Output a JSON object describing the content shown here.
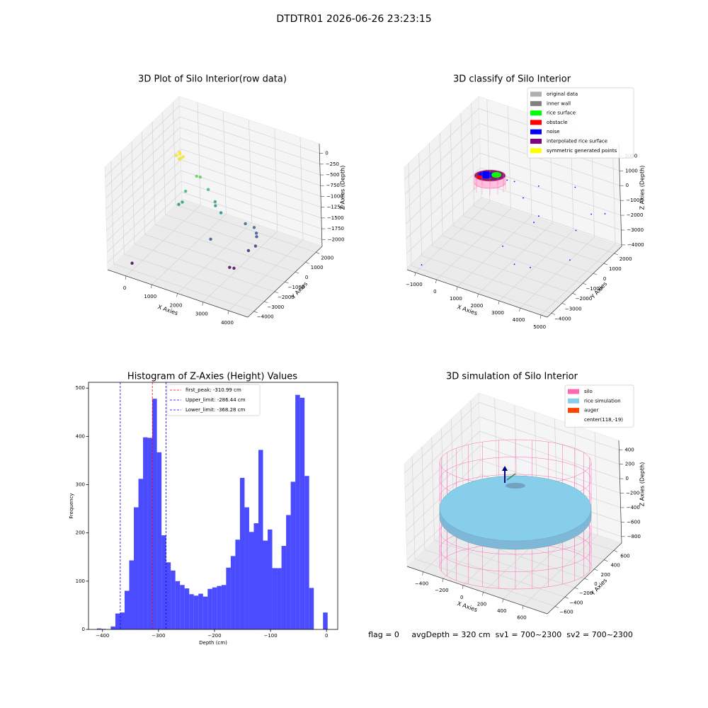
{
  "title": "DTDTR01 2026-06-26 23:23:15",
  "footer": "flag = 0     avgDepth = 320 cm  sv1 = 700~2300  sv2 = 700~2300",
  "chart_data": [
    {
      "type": "scatter3d",
      "title": "3D Plot of Silo Interior(row data)",
      "xlabel": "X Axies",
      "ylabel": "Y Axies",
      "zlabel": "Z Axies (Depth)",
      "xlim": [
        -720,
        4745
      ],
      "ylim": [
        -4600,
        2600
      ],
      "zlim": [
        -2160,
        224
      ],
      "xticks": [
        0,
        1000,
        2000,
        3000,
        4000
      ],
      "yticks": [
        {
          "value": -4000,
          "label": "−4000"
        },
        {
          "value": -3000,
          "label": "−3000"
        },
        {
          "value": -2000,
          "label": "−2000"
        },
        {
          "value": -1000,
          "label": "−1000"
        },
        0,
        1000,
        2000
      ],
      "zticks": [
        {
          "value": -2000,
          "label": "−2000"
        },
        {
          "value": -1750,
          "label": "−1750"
        },
        {
          "value": -1500,
          "label": "−1500"
        },
        {
          "value": -1250,
          "label": "−1250"
        },
        {
          "value": -1000,
          "label": "−1000"
        },
        {
          "value": -750,
          "label": "−750"
        },
        {
          "value": -500,
          "label": "−500"
        },
        {
          "value": -250,
          "label": "−250"
        },
        0
      ],
      "colormap": "viridis",
      "points": {
        "x": [
          650,
          750,
          800,
          900,
          700,
          850,
          1300,
          1400,
          1700,
          2000,
          2050,
          2300,
          1100,
          1000,
          900,
          3000,
          3300,
          3400,
          3450,
          3300,
          3500,
          2200,
          3000,
          3150,
          0
        ],
        "y": [
          -1100,
          -1000,
          -1200,
          -1050,
          -900,
          -1150,
          -800,
          -700,
          -700,
          -800,
          -900,
          -1000,
          -1400,
          -1500,
          -1600,
          -400,
          -300,
          -350,
          -450,
          -900,
          -700,
          -1800,
          -2000,
          -1950,
          -4000
        ],
        "z": [
          -30,
          0,
          -60,
          -20,
          10,
          -40,
          -450,
          -470,
          -700,
          -900,
          -960,
          -1050,
          -700,
          -950,
          -1000,
          -1300,
          -1350,
          -1450,
          -1500,
          -1750,
          -1650,
          -1500,
          -1950,
          -1950,
          -2000
        ]
      }
    },
    {
      "type": "scatter3d",
      "title": "3D classify of Silo Interior",
      "xlabel": "X Axies",
      "ylabel": "Y Axies",
      "zlabel": "Z Axies (Depth)",
      "xlim": [
        -1400,
        5300
      ],
      "ylim": [
        -4400,
        2700
      ],
      "zlim": [
        -4100,
        2830
      ],
      "xticks": [
        {
          "value": -1000,
          "label": "−1000"
        },
        0,
        1000,
        2000,
        3000,
        4000,
        5000
      ],
      "yticks": [
        {
          "value": -4000,
          "label": "−4000"
        },
        {
          "value": -3000,
          "label": "−3000"
        },
        {
          "value": -2000,
          "label": "−2000"
        },
        {
          "value": -1000,
          "label": "−1000"
        },
        0,
        1000,
        2000
      ],
      "zticks": [
        {
          "value": -4000,
          "label": "−4000"
        },
        {
          "value": -3000,
          "label": "−3000"
        },
        {
          "value": -2000,
          "label": "−2000"
        },
        {
          "value": -1000,
          "label": "−1000"
        },
        0,
        1000,
        2000
      ],
      "legend": "upper right",
      "series": [
        {
          "name": "original data",
          "color": "#b0b0b0"
        },
        {
          "name": "inner wall",
          "color": "#808080"
        },
        {
          "name": "rice surface",
          "color": "#00ff00"
        },
        {
          "name": "obstacle",
          "color": "#ff0000"
        },
        {
          "name": "noise",
          "color": "#0000ff",
          "x": [
            -900,
            1500,
            2000,
            2500,
            3000,
            3500,
            4000,
            4500,
            2000,
            2800,
            3200,
            1000,
            1200,
            4800,
            4600
          ],
          "y": [
            -4000,
            1000,
            1500,
            0,
            -500,
            2000,
            1000,
            1500,
            -2000,
            -2500,
            -1800,
            500,
            800,
            2200,
            -800
          ],
          "z": [
            -3800,
            -1500,
            -800,
            -2000,
            -1000,
            -500,
            -2500,
            -1500,
            -2500,
            -3000,
            -3500,
            -200,
            -400,
            -1800,
            -3000
          ]
        },
        {
          "name": "interpolated rice surface",
          "color": "#800080"
        },
        {
          "name": "symmetric generated points",
          "color": "#ffff00"
        }
      ]
    },
    {
      "type": "histogram",
      "title": "Histogram of Z-Axies (Height) Values",
      "xlabel": "Depth (cm)",
      "ylabel": "Frequency",
      "color": "#0000ff",
      "bins": [
        -410,
        -401.76,
        -393.52,
        -385.28,
        -377.04,
        -368.8,
        -360.56,
        -352.32,
        -344.08,
        -335.84,
        -327.6,
        -319.36,
        -311.12,
        -302.88,
        -294.64,
        -286.4,
        -278.16,
        -269.92,
        -261.68,
        -253.44,
        -245.2,
        -236.96,
        -228.72,
        -220.48,
        -212.24,
        -204,
        -195.76,
        -187.52,
        -179.28,
        -171.04,
        -162.8,
        -154.56,
        -146.32,
        -138.08,
        -129.84,
        -121.6,
        -113.36,
        -105.12,
        -96.88,
        -88.64,
        -80.4,
        -72.16,
        -63.92,
        -55.68,
        -47.44,
        -39.2,
        -30.96,
        -22.72,
        -14.48,
        -6.24,
        2
      ],
      "values": [
        2,
        1,
        0,
        6,
        33,
        35,
        80,
        143,
        253,
        312,
        398,
        397,
        478,
        367,
        195,
        139,
        122,
        100,
        92,
        85,
        73,
        70,
        74,
        68,
        84,
        87,
        90,
        92,
        128,
        152,
        186,
        314,
        253,
        202,
        220,
        372,
        184,
        207,
        127,
        127,
        173,
        237,
        306,
        486,
        480,
        318,
        86,
        0,
        0,
        35
      ],
      "xlim": [
        -425,
        20
      ],
      "ylim": [
        0,
        512
      ],
      "xticks": [
        {
          "value": -400,
          "label": "−400"
        },
        {
          "value": -300,
          "label": "−300"
        },
        {
          "value": -200,
          "label": "−200"
        },
        {
          "value": -100,
          "label": "−100"
        },
        0
      ],
      "yticks": [
        0,
        100,
        200,
        300,
        400,
        500
      ],
      "lines": [
        {
          "name": "first_peak: -310.99 cm",
          "value": -310.99,
          "color": "#ff0000"
        },
        {
          "name": "Upper_limit: -286.44 cm",
          "value": -286.44,
          "color": "#0000ff"
        },
        {
          "name": "Lower_limit: -368.28 cm",
          "value": -368.28,
          "color": "#0000ff"
        }
      ],
      "legend": "upper center"
    },
    {
      "type": "surface3d",
      "title": "3D simulation of Silo Interior",
      "xlabel": "X Axies",
      "ylabel": "Y Axies",
      "zlabel": "Z Axies (Depth)",
      "xlim": [
        -560,
        840
      ],
      "ylim": [
        -760,
        760
      ],
      "zlim": [
        -890,
        530
      ],
      "xticks": [
        {
          "value": -400,
          "label": "−400"
        },
        {
          "value": -200,
          "label": "−200"
        },
        0,
        200,
        400,
        600
      ],
      "yticks": [
        {
          "value": -600,
          "label": "−600"
        },
        {
          "value": -400,
          "label": "−400"
        },
        {
          "value": -200,
          "label": "−200"
        },
        0,
        200,
        400,
        600
      ],
      "zticks": [
        {
          "value": -800,
          "label": "−800"
        },
        {
          "value": -600,
          "label": "−600"
        },
        {
          "value": -400,
          "label": "−400"
        },
        {
          "value": -200,
          "label": "−200"
        },
        0,
        200,
        400
      ],
      "legend": "upper right",
      "series": [
        {
          "name": "silo",
          "color": "#ff69b4"
        },
        {
          "name": "rice simulation",
          "color": "#87ceeb"
        },
        {
          "name": "auger",
          "color": "#ff4500"
        },
        {
          "name": "center(118,-19)"
        }
      ]
    }
  ]
}
